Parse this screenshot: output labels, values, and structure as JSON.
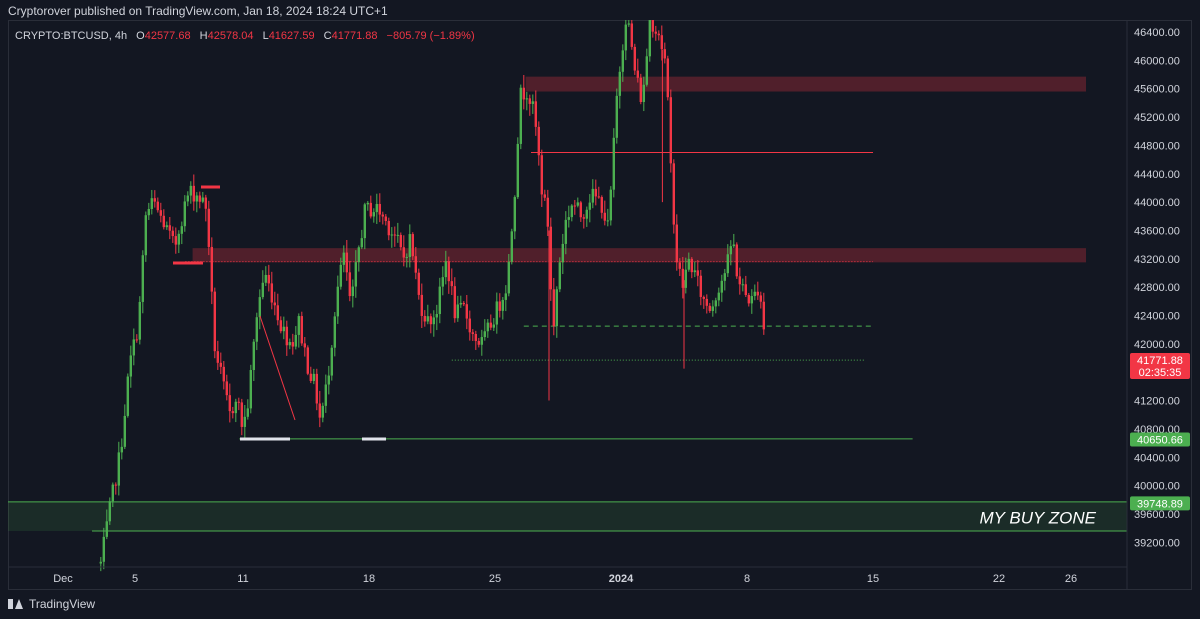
{
  "header": {
    "published": "Cryptorover published on TradingView.com, Jan 18, 2024 18:24 UTC+1"
  },
  "legend": {
    "symbol": "CRYPTO:BTCUSD, 4h",
    "open_label": "O",
    "open": "42577.68",
    "high_label": "H",
    "high": "42578.04",
    "low_label": "L",
    "low": "41627.59",
    "close_label": "C",
    "close": "41771.88",
    "change": "−805.79 (−1.89%)"
  },
  "footer": {
    "brand": "TradingView"
  },
  "chart_data": {
    "type": "candlestick",
    "ylim": [
      38800,
      46600
    ],
    "y_ticks": [
      39200,
      39600,
      40000,
      40400,
      40800,
      41200,
      41600,
      42000,
      42400,
      42800,
      43200,
      43600,
      44000,
      44400,
      44800,
      45200,
      45600,
      46000,
      46400
    ],
    "y_tick_labels": [
      "39200.00",
      "39600.00",
      "40000.00",
      "40400.00",
      "40800.00",
      "41200.00",
      "41600.00",
      "42000.00",
      "42400.00",
      "42800.00",
      "43200.00",
      "43600.00",
      "44000.00",
      "44400.00",
      "44800.00",
      "45200.00",
      "45600.00",
      "46000.00",
      "46400.00"
    ],
    "x_ticks": [
      {
        "label": "Dec",
        "t": 0
      },
      {
        "label": "5",
        "t": 4
      },
      {
        "label": "11",
        "t": 10
      },
      {
        "label": "18",
        "t": 17
      },
      {
        "label": "25",
        "t": 24
      },
      {
        "label": "2024",
        "t": 31,
        "bold": true
      },
      {
        "label": "8",
        "t": 38
      },
      {
        "label": "15",
        "t": 45
      },
      {
        "label": "22",
        "t": 52
      },
      {
        "label": "26",
        "t": 56
      }
    ],
    "anchors": [
      [
        2.1,
        38900
      ],
      [
        2.6,
        39650
      ],
      [
        3.2,
        40500
      ],
      [
        3.7,
        41700
      ],
      [
        4.2,
        42300
      ],
      [
        4.6,
        43800
      ],
      [
        5.0,
        44000
      ],
      [
        5.6,
        43700
      ],
      [
        6.2,
        43350
      ],
      [
        6.5,
        43700
      ],
      [
        7.0,
        44150
      ],
      [
        7.5,
        44100
      ],
      [
        8.0,
        43900
      ],
      [
        8.4,
        42000
      ],
      [
        8.9,
        41400
      ],
      [
        9.3,
        40950
      ],
      [
        9.6,
        41300
      ],
      [
        10.0,
        40800
      ],
      [
        10.3,
        41200
      ],
      [
        10.8,
        42500
      ],
      [
        11.2,
        43000
      ],
      [
        11.6,
        42700
      ],
      [
        12.2,
        42200
      ],
      [
        12.7,
        42000
      ],
      [
        13.1,
        42300
      ],
      [
        13.6,
        41700
      ],
      [
        14.0,
        41400
      ],
      [
        14.3,
        40900
      ],
      [
        14.7,
        41500
      ],
      [
        15.2,
        42700
      ],
      [
        15.6,
        43250
      ],
      [
        16.0,
        42500
      ],
      [
        16.4,
        43300
      ],
      [
        16.8,
        43900
      ],
      [
        17.5,
        43900
      ],
      [
        18.0,
        43700
      ],
      [
        18.5,
        43500
      ],
      [
        18.9,
        43200
      ],
      [
        19.3,
        43500
      ],
      [
        19.8,
        42600
      ],
      [
        20.3,
        42300
      ],
      [
        20.8,
        42500
      ],
      [
        21.3,
        43200
      ],
      [
        21.8,
        42400
      ],
      [
        22.3,
        42500
      ],
      [
        22.8,
        42100
      ],
      [
        23.3,
        42000
      ],
      [
        23.8,
        42300
      ],
      [
        24.3,
        42600
      ],
      [
        24.7,
        42900
      ],
      [
        25.1,
        44200
      ],
      [
        25.4,
        45500
      ],
      [
        25.8,
        45600
      ],
      [
        26.2,
        45200
      ],
      [
        26.6,
        44200
      ],
      [
        27.0,
        43600
      ],
      [
        27.2,
        42000
      ],
      [
        27.5,
        43000
      ],
      [
        27.9,
        43700
      ],
      [
        28.3,
        44000
      ],
      [
        28.8,
        43800
      ],
      [
        29.3,
        44100
      ],
      [
        29.9,
        44000
      ],
      [
        30.3,
        43600
      ],
      [
        30.8,
        45600
      ],
      [
        31.3,
        46700
      ],
      [
        31.8,
        45800
      ],
      [
        32.2,
        45400
      ],
      [
        32.6,
        46600
      ],
      [
        33.1,
        46400
      ],
      [
        33.5,
        45900
      ],
      [
        33.8,
        44300
      ],
      [
        34.1,
        43200
      ],
      [
        34.4,
        42800
      ],
      [
        34.8,
        43200
      ],
      [
        35.2,
        42900
      ],
      [
        35.6,
        42600
      ],
      [
        36.0,
        42500
      ],
      [
        36.4,
        42800
      ],
      [
        36.9,
        43100
      ],
      [
        37.2,
        43500
      ],
      [
        37.5,
        42900
      ],
      [
        37.9,
        42700
      ],
      [
        38.3,
        42600
      ],
      [
        38.6,
        42800
      ],
      [
        38.9,
        42500
      ],
      [
        39.0,
        41700
      ]
    ],
    "zones": [
      {
        "y1": 45560,
        "y2": 45770,
        "kind": "supply"
      },
      {
        "y1": 43150,
        "y2": 43350,
        "kind": "supply"
      },
      {
        "y1": 39360,
        "y2": 39770,
        "kind": "buy",
        "label": "MY BUY ZONE"
      }
    ],
    "lines": [
      {
        "y": 44700,
        "x1": 26.0,
        "x2": 45.0,
        "style": "solid",
        "color": "#f23645"
      },
      {
        "y": 43160,
        "x1": 6.8,
        "x2": 45.0,
        "style": "dotted",
        "color": "#f23645"
      },
      {
        "y": 42250,
        "x1": 25.6,
        "x2": 44.9,
        "style": "dashed",
        "color": "#4caf50"
      },
      {
        "y": 41770,
        "x1": 21.6,
        "x2": 44.6,
        "style": "dotted",
        "color": "#4caf50"
      },
      {
        "y": 40660,
        "x1": 9.8,
        "x2": 47.2,
        "style": "solid",
        "color": "#4caf50"
      }
    ],
    "price_badges": [
      {
        "y": 41771.88,
        "text": "41771.88",
        "subtext": "02:35:35",
        "color": "#f23645"
      },
      {
        "y": 40650.66,
        "text": "40650.66",
        "color": "#4caf50"
      },
      {
        "y": 39748.89,
        "text": "39748.89",
        "color": "#4caf50"
      }
    ],
    "colors": {
      "up": "#4caf50",
      "down": "#f23645",
      "background": "#131722",
      "axis_text": "#d1d4dc"
    }
  }
}
